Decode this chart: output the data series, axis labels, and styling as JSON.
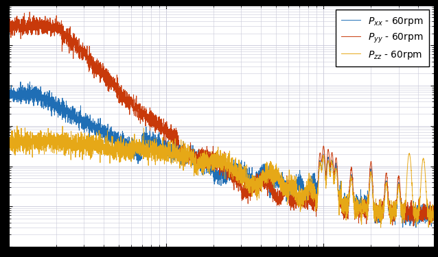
{
  "legend_labels": [
    "$P_{xx}$ - 60rpm",
    "$P_{yy}$ - 60rpm",
    "$P_{zz}$ - 60rpm"
  ],
  "colors": [
    "#1f6eb5",
    "#c8390a",
    "#e6a817"
  ],
  "xlim": [
    1,
    500
  ],
  "ylim": [
    1e-09,
    0.001
  ],
  "background_color": "#ffffff",
  "outer_background": "#000000",
  "grid_color": "#c8c8d8",
  "seed": 42
}
